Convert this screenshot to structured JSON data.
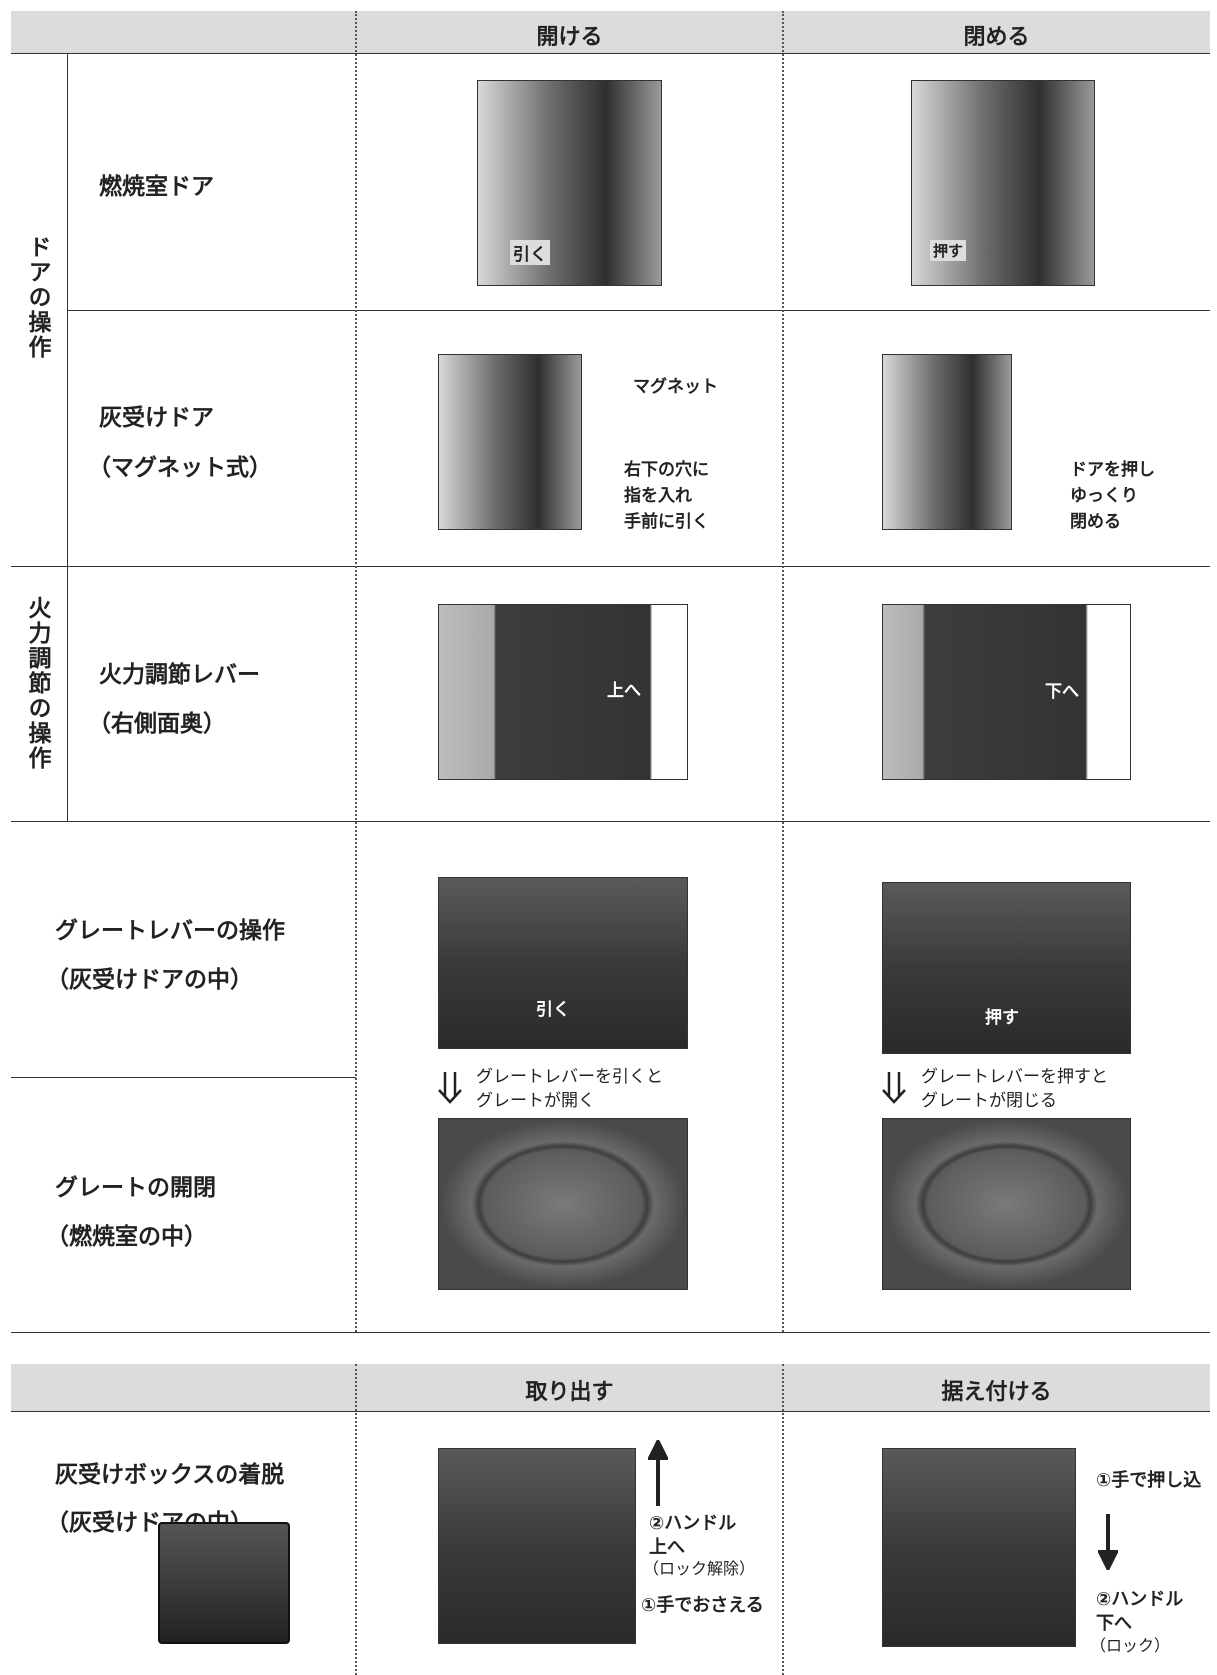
{
  "table1": {
    "headers": [
      "開ける",
      "閉める"
    ],
    "groups": [
      "ドアの操作",
      "火力調節の操作"
    ],
    "rows": [
      {
        "name": [
          "燃焼室ドア"
        ],
        "open_labels": [
          "引く"
        ],
        "close_labels": [
          "押す"
        ]
      },
      {
        "name": [
          "灰受けドア",
          "（マグネット式）"
        ],
        "open_labels": [
          "マグネット",
          "右下の穴に",
          "指を入れ",
          "手前に引く"
        ],
        "close_labels": [
          "ドアを押し",
          "ゆっくり",
          "閉める"
        ]
      },
      {
        "name": [
          "火力調節レバー",
          "（右側面奥）"
        ],
        "open_labels": [
          "上へ"
        ],
        "close_labels": [
          "下へ"
        ]
      },
      {
        "name": [
          "グレートレバーの操作",
          "（灰受けドアの中）"
        ],
        "open_labels": [
          "引く"
        ],
        "close_labels": [
          "押す"
        ]
      },
      {
        "name": [
          "グレートの開閉",
          "（燃焼室の中）"
        ],
        "open_labels": [
          "グレートレバーを引くと",
          "グレートが開く"
        ],
        "close_labels": [
          "グレートレバーを押すと",
          "グレートが閉じる"
        ]
      }
    ]
  },
  "table2": {
    "headers": [
      "取り出す",
      "据え付ける"
    ],
    "name": [
      "灰受けボックスの着脱",
      "（灰受けドアの中）"
    ],
    "remove_labels": [
      "②ハンドル",
      "上へ",
      "（ロック解除）",
      "①手でおさえる"
    ],
    "install_labels": [
      "①手で押し込",
      "②ハンドル",
      "下へ",
      "（ロック）"
    ]
  }
}
